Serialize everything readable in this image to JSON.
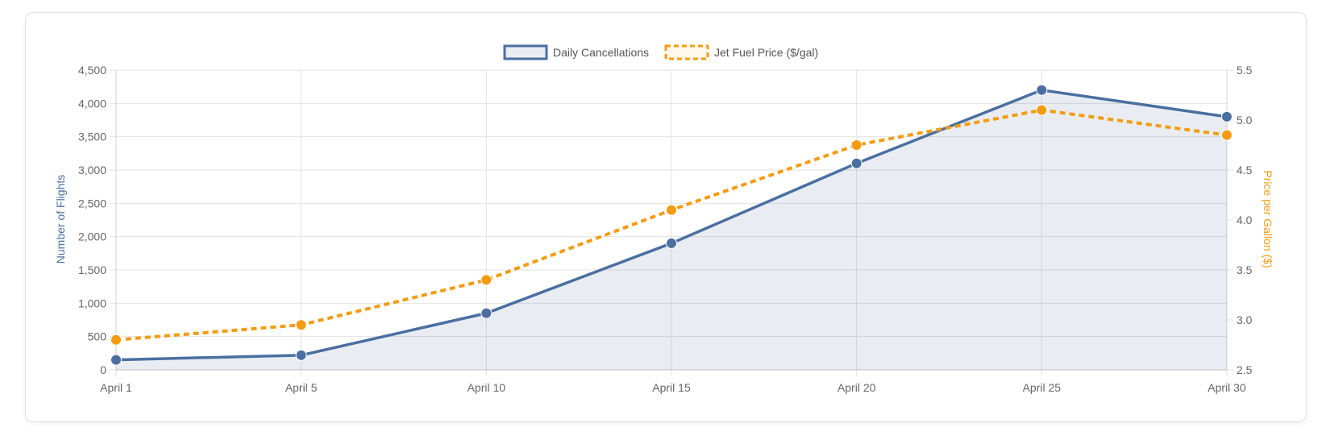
{
  "colors": {
    "cancellations": "#4a6fa0",
    "cancellations_fill": "rgba(74,111,160,0.12)",
    "fuel": "#f39c12",
    "grid": "#e2e2e2",
    "tick": "#666666"
  },
  "chart_data": {
    "type": "line",
    "categories": [
      "April 1",
      "April 5",
      "April 10",
      "April 15",
      "April 20",
      "April 25",
      "April 30"
    ],
    "series": [
      {
        "name": "Daily Cancellations",
        "axis": "left",
        "style": "solid-filled-area",
        "values": [
          150,
          220,
          850,
          1900,
          3100,
          4200,
          3800
        ]
      },
      {
        "name": "Jet Fuel Price ($/gal)",
        "axis": "right",
        "style": "dashed",
        "values": [
          2.8,
          2.95,
          3.4,
          4.1,
          4.75,
          5.1,
          4.85
        ]
      }
    ],
    "ylabel": "Number of Flights",
    "y2label": "Price per Gallon ($)",
    "ylim": [
      0,
      4500
    ],
    "y2lim": [
      2.5,
      5.5
    ],
    "yticks": [
      "0",
      "500",
      "1,000",
      "1,500",
      "2,000",
      "2,500",
      "3,000",
      "3,500",
      "4,000",
      "4,500"
    ],
    "y2ticks": [
      "2.5",
      "3.0",
      "3.5",
      "4.0",
      "4.5",
      "5.0",
      "5.5"
    ],
    "grid": true,
    "legend_position": "top-center"
  }
}
